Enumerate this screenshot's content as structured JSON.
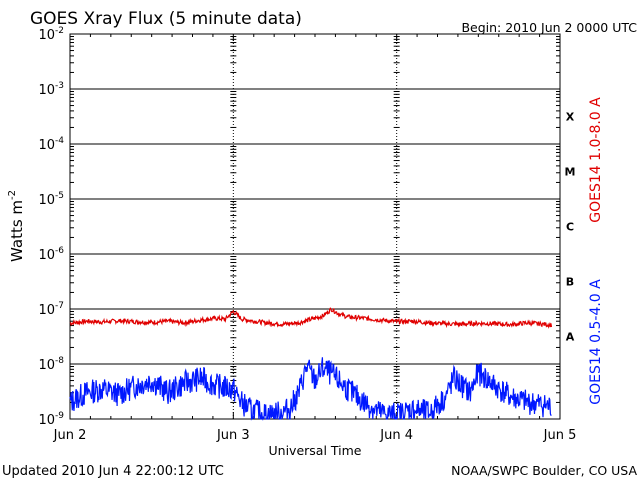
{
  "chart_data": {
    "type": "line",
    "title": "GOES Xray Flux (5 minute data)",
    "begin_text": "Begin:  2010 Jun 2 0000 UTC",
    "xlabel": "Universal Time",
    "ylabel_main": "Watts m",
    "ylabel_sup": "-2",
    "y_scale": "log",
    "ylim": [
      1e-09,
      0.01
    ],
    "grid": true,
    "x_ticks": [
      "Jun 2",
      "Jun 3",
      "Jun 4",
      "Jun 5"
    ],
    "y_ticks": [
      {
        "base": "10",
        "exp": "-2"
      },
      {
        "base": "10",
        "exp": "-3"
      },
      {
        "base": "10",
        "exp": "-4"
      },
      {
        "base": "10",
        "exp": "-5"
      },
      {
        "base": "10",
        "exp": "-6"
      },
      {
        "base": "10",
        "exp": "-7"
      },
      {
        "base": "10",
        "exp": "-8"
      },
      {
        "base": "10",
        "exp": "-9"
      }
    ],
    "flare_classes": [
      {
        "label": "X",
        "exponent": -4
      },
      {
        "label": "M",
        "exponent": -5
      },
      {
        "label": "C",
        "exponent": -6
      },
      {
        "label": "B",
        "exponent": -7
      },
      {
        "label": "A",
        "exponent": -8
      }
    ],
    "series": [
      {
        "name": "GOES14 1.0-8.0 A",
        "color": "#e00000",
        "x_days": [
          0,
          0.1,
          0.2,
          0.3,
          0.4,
          0.5,
          0.6,
          0.7,
          0.8,
          0.9,
          0.95,
          1.0,
          1.05,
          1.1,
          1.2,
          1.3,
          1.4,
          1.5,
          1.55,
          1.6,
          1.65,
          1.7,
          1.75,
          1.8,
          1.9,
          2.0,
          2.1,
          2.2,
          2.3,
          2.4,
          2.5,
          2.6,
          2.7,
          2.8,
          2.9,
          2.95
        ],
        "values": [
          5.5e-08,
          6e-08,
          5.8e-08,
          6.1e-08,
          5.9e-08,
          5.7e-08,
          6e-08,
          5.6e-08,
          6.3e-08,
          6.8e-08,
          6.5e-08,
          9e-08,
          6.6e-08,
          6.2e-08,
          5.6e-08,
          5.3e-08,
          5.6e-08,
          6.8e-08,
          7.5e-08,
          1e-07,
          8e-08,
          7.2e-08,
          7e-08,
          6.8e-08,
          6.3e-08,
          5.9e-08,
          6e-08,
          5.6e-08,
          5.4e-08,
          5.3e-08,
          5.5e-08,
          5.4e-08,
          5.2e-08,
          5.6e-08,
          5.3e-08,
          5.1e-08
        ]
      },
      {
        "name": "GOES14 0.5-4.0 A",
        "color": "#0018ff",
        "x_days": [
          0,
          0.05,
          0.1,
          0.2,
          0.3,
          0.4,
          0.5,
          0.6,
          0.7,
          0.8,
          0.9,
          1.0,
          1.05,
          1.1,
          1.2,
          1.3,
          1.35,
          1.4,
          1.45,
          1.5,
          1.55,
          1.6,
          1.7,
          1.8,
          1.9,
          2.0,
          2.1,
          2.2,
          2.3,
          2.35,
          2.4,
          2.45,
          2.5,
          2.6,
          2.7,
          2.8,
          2.9,
          2.95
        ],
        "values": [
          2e-09,
          2.5e-09,
          3e-09,
          3.5e-09,
          2.8e-09,
          4e-09,
          5e-09,
          3e-09,
          4.5e-09,
          5.5e-09,
          4e-09,
          3.5e-09,
          2e-09,
          1.5e-09,
          1.2e-09,
          1.3e-09,
          1.6e-09,
          3e-09,
          9e-09,
          5e-09,
          8.5e-09,
          6.5e-09,
          3.5e-09,
          2e-09,
          1.3e-09,
          1.2e-09,
          1.5e-09,
          1.3e-09,
          2.5e-09,
          5.5e-09,
          4e-09,
          3e-09,
          7e-09,
          4e-09,
          2.5e-09,
          2e-09,
          1.8e-09,
          1.6e-09
        ]
      }
    ]
  },
  "footer": {
    "updated": "Updated 2010 Jun  4 22:00:12 UTC",
    "source": "NOAA/SWPC Boulder, CO USA"
  }
}
